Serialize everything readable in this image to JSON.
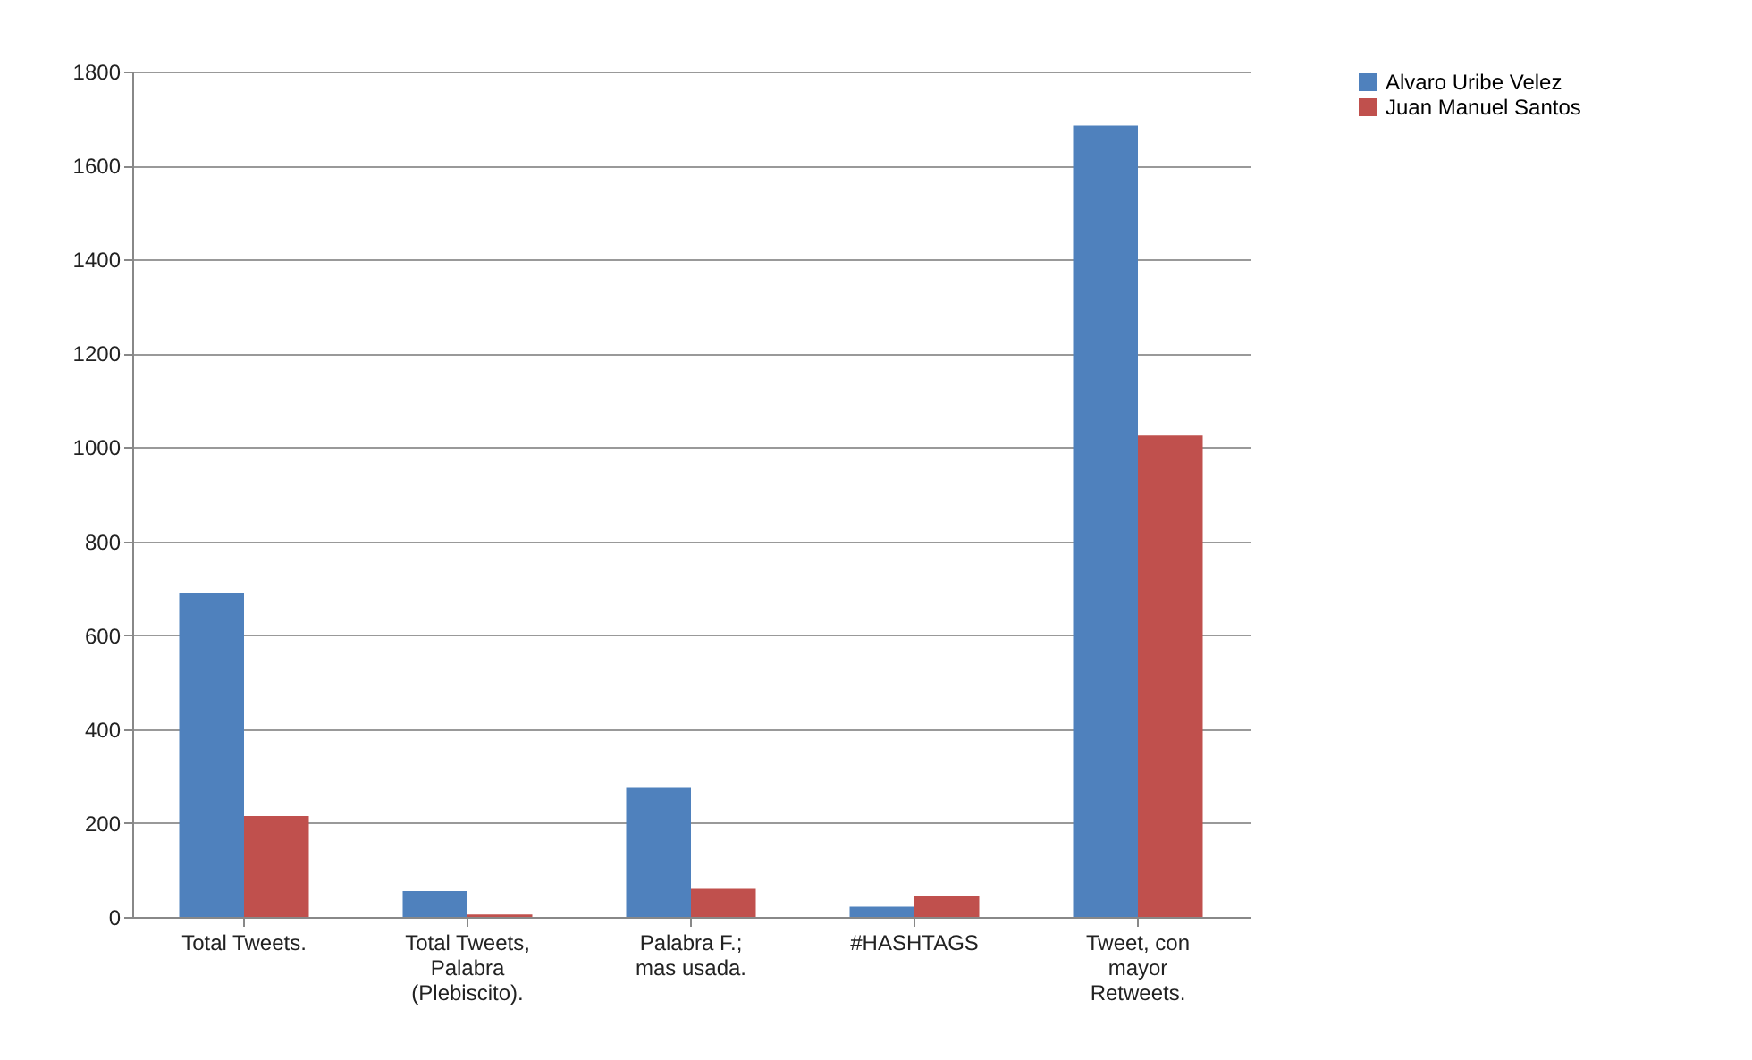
{
  "chart_data": {
    "type": "bar",
    "categories": [
      "Total Tweets.",
      "Total Tweets, Palabra (Plebiscito).",
      "Palabra F.; mas usada.",
      "#HASHTAGS",
      "Tweet, con mayor Retweets."
    ],
    "series": [
      {
        "name": "Alvaro Uribe Velez",
        "color": "#4f81bd",
        "values": [
          690,
          55,
          275,
          22,
          1685
        ]
      },
      {
        "name": "Juan Manuel Santos",
        "color": "#c0504d",
        "values": [
          215,
          5,
          60,
          45,
          1025
        ]
      }
    ],
    "ylim": [
      0,
      1800
    ],
    "yticks": [
      0,
      200,
      400,
      600,
      800,
      1000,
      1200,
      1400,
      1600,
      1800
    ],
    "grid": "y",
    "legend": "right"
  }
}
